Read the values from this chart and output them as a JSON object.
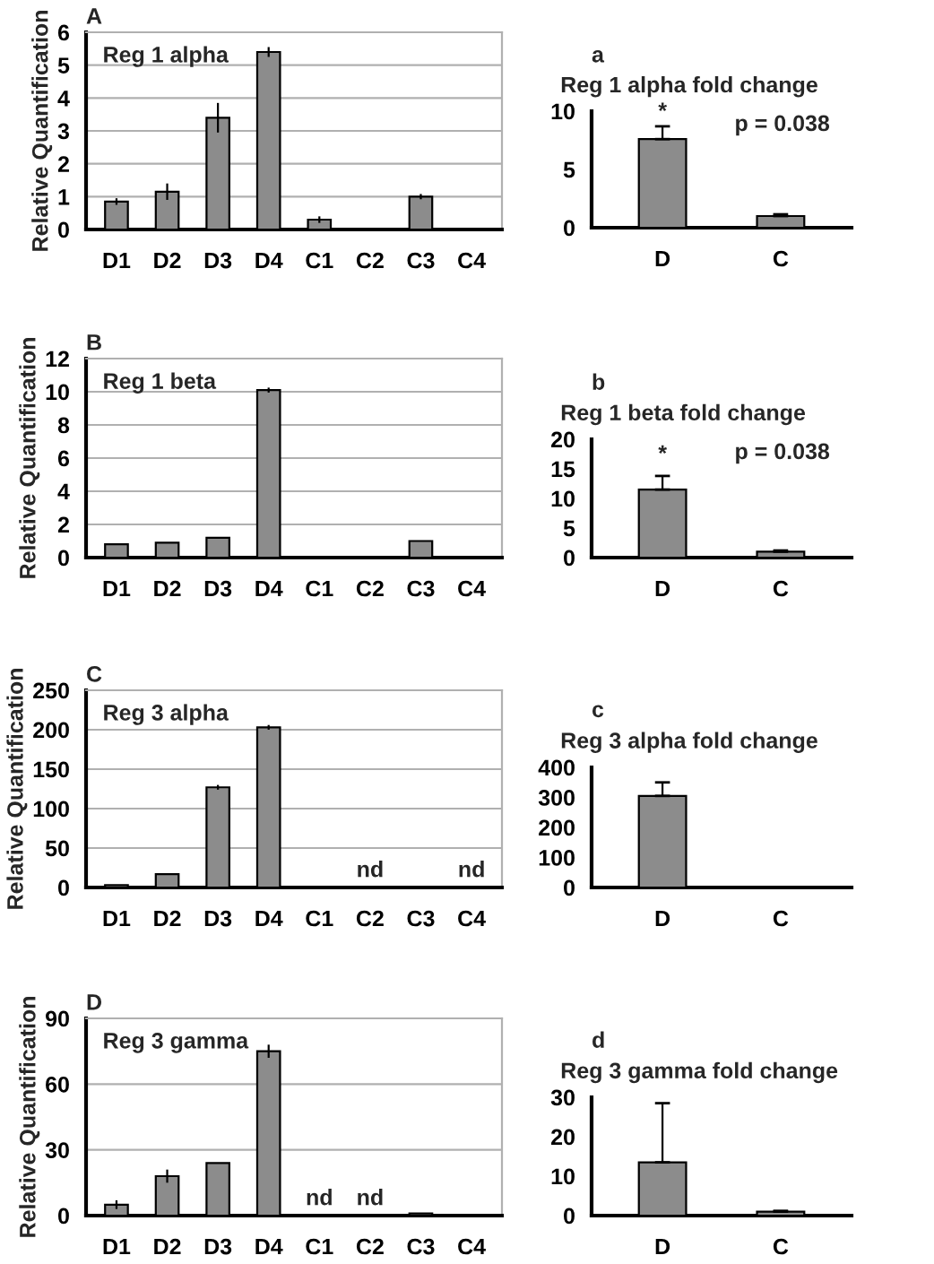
{
  "chart_data": [
    {
      "type": "bar",
      "title": "A",
      "subtitle": "Reg 1 alpha",
      "ylabel": "Relative Quantification",
      "categories": [
        "D1",
        "D2",
        "D3",
        "D4",
        "C1",
        "C2",
        "C3",
        "C4"
      ],
      "color": "#8c8c8c",
      "values": [
        0.85,
        1.15,
        3.4,
        5.4,
        0.3,
        null,
        1.0,
        null
      ],
      "errors": [
        0.1,
        0.25,
        0.45,
        0.15,
        0.1,
        null,
        0.08,
        null
      ],
      "ylim": [
        0,
        6
      ],
      "yticks": [
        0,
        1,
        2,
        3,
        4,
        5,
        6
      ],
      "grid": "y"
    },
    {
      "type": "bar",
      "title": "a",
      "subtitle": "Reg 1 alpha fold change",
      "categories": [
        "D",
        "C"
      ],
      "color": "#8c8c8c",
      "values": [
        7.6,
        1.0
      ],
      "errors": [
        [
          7.6,
          8.7
        ],
        [
          1.0,
          1.15
        ]
      ],
      "ylim": [
        0,
        10
      ],
      "yticks": [
        0,
        5,
        10
      ],
      "annotations": [
        "*",
        "p = 0.038"
      ]
    },
    {
      "type": "bar",
      "title": "B",
      "subtitle": "Reg 1 beta",
      "ylabel": "Relative Quantification",
      "categories": [
        "D1",
        "D2",
        "D3",
        "D4",
        "C1",
        "C2",
        "C3",
        "C4"
      ],
      "color": "#8c8c8c",
      "values": [
        0.8,
        0.9,
        1.2,
        10.1,
        null,
        null,
        1.0,
        null
      ],
      "errors": [
        null,
        null,
        null,
        0.15,
        null,
        null,
        null,
        null
      ],
      "ylim": [
        0,
        12
      ],
      "yticks": [
        0,
        2,
        4,
        6,
        8,
        10,
        12
      ],
      "grid": "y"
    },
    {
      "type": "bar",
      "title": "b",
      "subtitle": "Reg 1 beta fold change",
      "categories": [
        "D",
        "C"
      ],
      "color": "#8c8c8c",
      "values": [
        11.5,
        1.0
      ],
      "errors": [
        [
          11.5,
          13.8
        ],
        [
          1.0,
          1.2
        ]
      ],
      "ylim": [
        0,
        20
      ],
      "yticks": [
        0,
        5,
        10,
        15,
        20
      ],
      "annotations": [
        "*",
        "p = 0.038"
      ]
    },
    {
      "type": "bar",
      "title": "C",
      "subtitle": "Reg 3 alpha",
      "ylabel": "Relative Quantification",
      "categories": [
        "D1",
        "D2",
        "D3",
        "D4",
        "C1",
        "C2",
        "C3",
        "C4"
      ],
      "color": "#8c8c8c",
      "values": [
        3,
        17,
        127,
        203,
        null,
        null,
        null,
        null
      ],
      "errors": [
        null,
        null,
        3,
        3,
        null,
        null,
        null,
        null
      ],
      "ylim": [
        0,
        250
      ],
      "yticks": [
        0,
        50,
        100,
        150,
        200,
        250
      ],
      "grid": "y",
      "annotations": [
        "nd",
        "nd"
      ]
    },
    {
      "type": "bar",
      "title": "c",
      "subtitle": "Reg 3 alpha fold change",
      "categories": [
        "D",
        "C"
      ],
      "color": "#8c8c8c",
      "values": [
        305,
        null
      ],
      "errors": [
        [
          305,
          350
        ],
        null
      ],
      "ylim": [
        0,
        400
      ],
      "yticks": [
        0,
        100,
        200,
        300,
        400
      ]
    },
    {
      "type": "bar",
      "title": "D",
      "subtitle": "Reg 3 gamma",
      "ylabel": "Relative Quantification",
      "categories": [
        "D1",
        "D2",
        "D3",
        "D4",
        "C1",
        "C2",
        "C3",
        "C4"
      ],
      "color": "#8c8c8c",
      "values": [
        5,
        18,
        24,
        75,
        null,
        null,
        1,
        null
      ],
      "errors": [
        2,
        3,
        null,
        3,
        null,
        null,
        null,
        null
      ],
      "ylim": [
        0,
        90
      ],
      "yticks": [
        0,
        30,
        60,
        90
      ],
      "grid": "y",
      "annotations": [
        "nd",
        "nd"
      ]
    },
    {
      "type": "bar",
      "title": "d",
      "subtitle": "Reg 3 gamma fold change",
      "categories": [
        "D",
        "C"
      ],
      "color": "#8c8c8c",
      "values": [
        13.5,
        1.0
      ],
      "errors": [
        [
          13.5,
          28.5
        ],
        [
          1.0,
          1.2
        ]
      ],
      "ylim": [
        0,
        30
      ],
      "yticks": [
        0,
        10,
        20,
        30
      ]
    }
  ]
}
